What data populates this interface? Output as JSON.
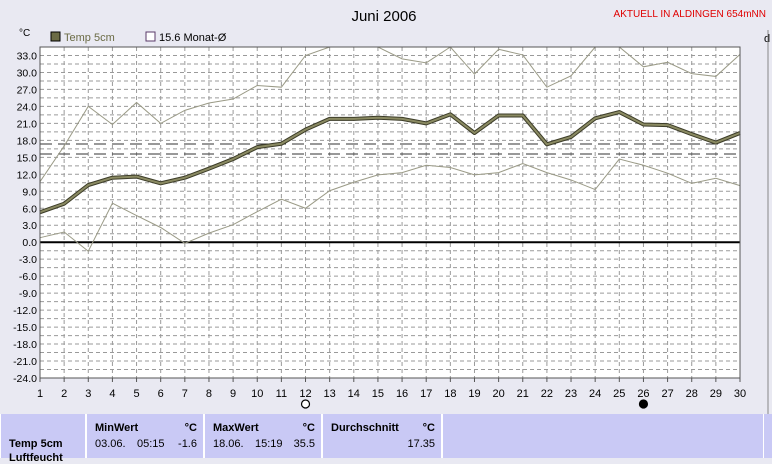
{
  "header": {
    "title": "Juni 2006",
    "station": "AKTUELL IN ALDINGEN 654mNN",
    "unit_left": "°C",
    "unit_right_fragment": "d"
  },
  "legend": {
    "series_label": "Temp 5cm",
    "mean_label": "15.6 Monat-Ø"
  },
  "chart_data": {
    "type": "line",
    "title": "Juni 2006",
    "ylabel": "°C",
    "ylim": [
      -24,
      34.5
    ],
    "xlim": [
      1,
      30
    ],
    "grid": true,
    "legend_position": "top-left",
    "x": [
      1,
      2,
      3,
      4,
      5,
      6,
      7,
      8,
      9,
      10,
      11,
      12,
      13,
      14,
      15,
      16,
      17,
      18,
      19,
      20,
      21,
      22,
      23,
      24,
      25,
      26,
      27,
      28,
      29,
      30
    ],
    "yticks": [
      "33.0",
      "30.0",
      "27.0",
      "24.0",
      "21.0",
      "18.0",
      "15.0",
      "12.0",
      "9.0",
      "6.0",
      "3.0",
      "0.0",
      "-3.0",
      "-6.0",
      "-9.0",
      "-12.0",
      "-15.0",
      "-18.0",
      "-21.0",
      "-24.0"
    ],
    "xticks": [
      "1",
      "2",
      "3",
      "4",
      "5",
      "6",
      "7",
      "8",
      "9",
      "10",
      "11",
      "12",
      "13",
      "14",
      "15",
      "16",
      "17",
      "18",
      "19",
      "20",
      "21",
      "22",
      "23",
      "24",
      "25",
      "26",
      "27",
      "28",
      "29",
      "30"
    ],
    "series": [
      {
        "name": "Temp 5cm",
        "color": "#707050",
        "values": [
          5.3,
          6.8,
          10.1,
          11.4,
          11.6,
          10.4,
          11.4,
          13.0,
          14.7,
          16.8,
          17.4,
          19.9,
          21.8,
          21.8,
          22.0,
          21.8,
          21.0,
          22.6,
          19.3,
          22.4,
          22.4,
          17.3,
          18.6,
          21.9,
          23.0,
          20.8,
          20.7,
          19.1,
          17.6,
          19.3
        ]
      },
      {
        "color": "#9a9a86",
        "values": [
          10.7,
          17.0,
          24.0,
          20.8,
          24.7,
          21.0,
          23.3,
          24.6,
          25.3,
          27.7,
          27.4,
          33.0,
          34.5,
          35.5,
          35.4,
          32.4,
          31.7,
          35.5,
          29.7,
          34.1,
          33.1,
          27.4,
          29.4,
          35.2,
          35.0,
          31.0,
          31.8,
          29.8,
          29.3,
          33.2
        ]
      },
      {
        "color": "#9a9a86",
        "values": [
          0.8,
          1.8,
          -1.6,
          6.9,
          4.7,
          2.6,
          -0.2,
          1.6,
          3.1,
          5.4,
          7.6,
          6.0,
          9.1,
          10.6,
          11.9,
          12.3,
          13.6,
          13.2,
          11.9,
          12.3,
          13.9,
          12.3,
          11.0,
          9.3,
          14.7,
          13.6,
          12.2,
          10.4,
          11.3,
          10.0
        ]
      }
    ],
    "reference_lines": [
      {
        "label": "15.6 Monat-Ø",
        "value": 15.6,
        "style": "dashed"
      },
      {
        "value": 17.35,
        "style": "dashed"
      },
      {
        "value": 0.0,
        "style": "solid"
      }
    ],
    "moon_markers": [
      {
        "day": 12,
        "phase": "full"
      },
      {
        "day": 26,
        "phase": "new"
      }
    ]
  },
  "stats": {
    "row_label": "Temp 5cm",
    "row_label2": "Luftfeucht",
    "min": {
      "header": "MinWert",
      "unit": "°C",
      "date": "03.06.",
      "time": "05:15",
      "value": "-1.6"
    },
    "max": {
      "header": "MaxWert",
      "unit": "°C",
      "date": "18.06.",
      "time": "15:19",
      "value": "35.5"
    },
    "avg": {
      "header": "Durchschnitt",
      "unit": "°C",
      "value": "17.35"
    }
  }
}
